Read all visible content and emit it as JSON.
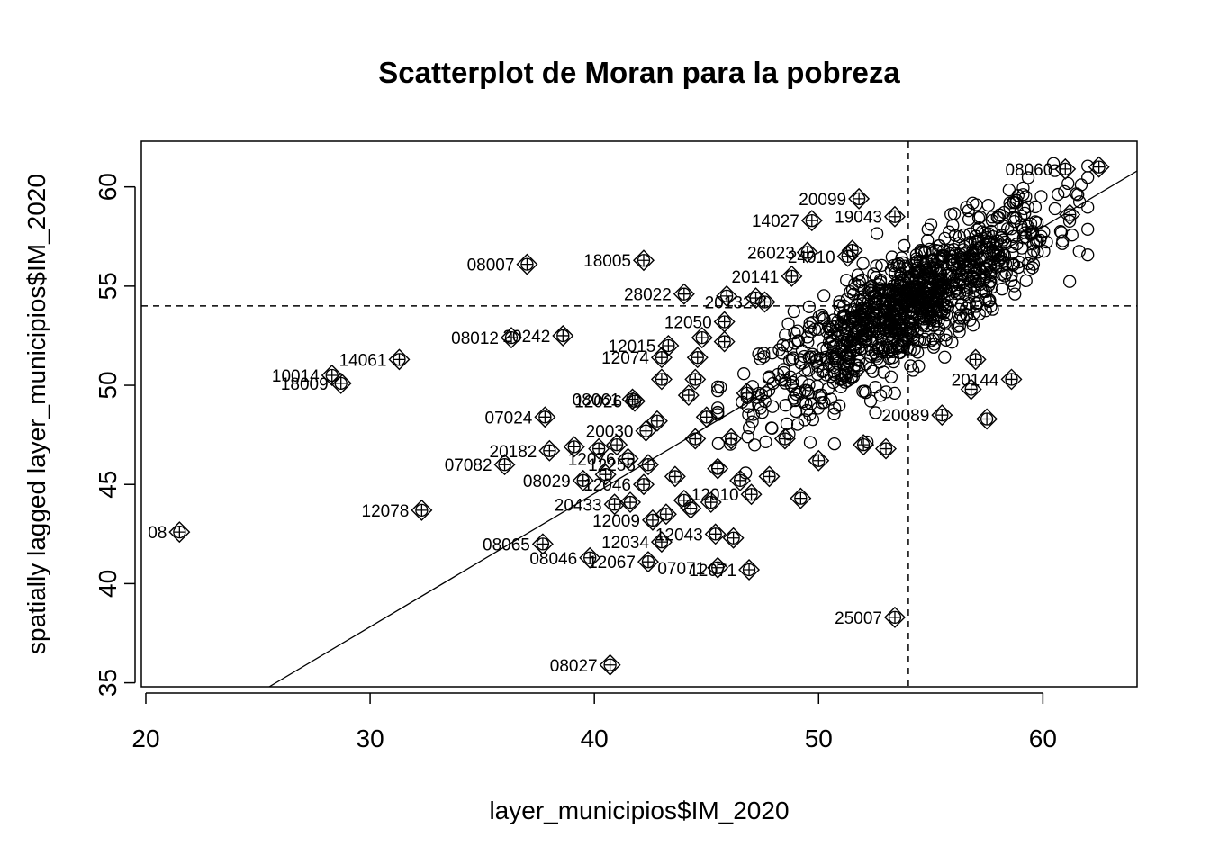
{
  "chart_data": {
    "type": "scatter",
    "title": "Scatterplot de Moran para la pobreza",
    "xlabel": "layer_municipios$IM_2020",
    "ylabel": "spatially lagged layer_municipios$IM_2020",
    "xlim": [
      19.8,
      64.2
    ],
    "ylim": [
      34.8,
      62.3
    ],
    "x_ticks": [
      20,
      30,
      40,
      50,
      60
    ],
    "y_ticks": [
      35,
      40,
      45,
      50,
      55,
      60
    ],
    "mean_x": 54.0,
    "mean_y": 54.0,
    "regression_line": {
      "x": [
        25.5,
        64.2
      ],
      "y": [
        34.8,
        60.8
      ]
    },
    "grid": false,
    "legend": "none",
    "cloud": {
      "center": [
        54.0,
        54.0
      ],
      "slope": 0.67,
      "n_points": 1100,
      "x_range": [
        45.5,
        62.0
      ],
      "note_hidden": true
    },
    "influential": [
      {
        "label": "08",
        "x": 21.5,
        "y": 42.6
      },
      {
        "label": "10014",
        "x": 28.3,
        "y": 50.5
      },
      {
        "label": "18009",
        "x": 28.7,
        "y": 50.1
      },
      {
        "label": "14061",
        "x": 31.3,
        "y": 51.3
      },
      {
        "label": "12078",
        "x": 32.3,
        "y": 43.7
      },
      {
        "label": "08007",
        "x": 37.0,
        "y": 56.1
      },
      {
        "label": "08012",
        "x": 36.3,
        "y": 52.4
      },
      {
        "label": "20242",
        "x": 38.6,
        "y": 52.5
      },
      {
        "label": "07024",
        "x": 37.8,
        "y": 48.4
      },
      {
        "label": "07082",
        "x": 36.0,
        "y": 46.0
      },
      {
        "label": "20182",
        "x": 38.0,
        "y": 46.7
      },
      {
        "label": "08029",
        "x": 39.5,
        "y": 45.2
      },
      {
        "label": "08065",
        "x": 37.7,
        "y": 42.0
      },
      {
        "label": "08046",
        "x": 39.8,
        "y": 41.3
      },
      {
        "label": "08027",
        "x": 40.7,
        "y": 35.9
      },
      {
        "label": "20433",
        "x": 40.9,
        "y": 44.0
      },
      {
        "label": "12067",
        "x": 42.4,
        "y": 41.1
      },
      {
        "label": "12034",
        "x": 43.0,
        "y": 42.1
      },
      {
        "label": "12009",
        "x": 42.6,
        "y": 43.2
      },
      {
        "label": "12046",
        "x": 42.2,
        "y": 45.0
      },
      {
        "label": "18005",
        "x": 42.2,
        "y": 56.3
      },
      {
        "label": "28022",
        "x": 44.0,
        "y": 54.6
      },
      {
        "label": "12050",
        "x": 45.8,
        "y": 53.2
      },
      {
        "label": "12074",
        "x": 43.0,
        "y": 51.4
      },
      {
        "label": "12015",
        "x": 43.3,
        "y": 52.0
      },
      {
        "label": "08061",
        "x": 41.7,
        "y": 49.3
      },
      {
        "label": "20099",
        "x": 51.8,
        "y": 59.4
      },
      {
        "label": "14027",
        "x": 49.7,
        "y": 58.3
      },
      {
        "label": "19043",
        "x": 53.4,
        "y": 58.5
      },
      {
        "label": "26023",
        "x": 49.5,
        "y": 56.7
      },
      {
        "label": "24010",
        "x": 51.3,
        "y": 56.5
      },
      {
        "label": "20141",
        "x": 48.8,
        "y": 55.5
      },
      {
        "label": "20132",
        "x": 47.6,
        "y": 54.2
      },
      {
        "label": "25007",
        "x": 53.4,
        "y": 38.3
      },
      {
        "label": "20089",
        "x": 55.5,
        "y": 48.5
      },
      {
        "label": "20144",
        "x": 58.6,
        "y": 50.3
      },
      {
        "label": "07071",
        "x": 45.5,
        "y": 40.8
      },
      {
        "label": "12071",
        "x": 46.9,
        "y": 40.7
      },
      {
        "label": "12043",
        "x": 45.4,
        "y": 42.5
      },
      {
        "label": "12010",
        "x": 47.0,
        "y": 44.5
      },
      {
        "label": "12258",
        "x": 42.4,
        "y": 46.0
      },
      {
        "label": "12076",
        "x": 41.5,
        "y": 46.3
      },
      {
        "label": "20030",
        "x": 42.3,
        "y": 47.7
      },
      {
        "label": "12026",
        "x": 41.8,
        "y": 49.2
      },
      {
        "label": "08060",
        "x": 61.0,
        "y": 60.9
      },
      {
        "label": "",
        "x": 62.5,
        "y": 61.0
      },
      {
        "label": "",
        "x": 61.2,
        "y": 58.6
      },
      {
        "label": "",
        "x": 57.5,
        "y": 48.3
      },
      {
        "label": "",
        "x": 56.8,
        "y": 49.8
      },
      {
        "label": "",
        "x": 57.0,
        "y": 51.3
      },
      {
        "label": "",
        "x": 53.0,
        "y": 46.8
      },
      {
        "label": "",
        "x": 50.0,
        "y": 46.2
      },
      {
        "label": "",
        "x": 49.2,
        "y": 44.3
      },
      {
        "label": "",
        "x": 46.2,
        "y": 42.3
      },
      {
        "label": "",
        "x": 45.5,
        "y": 45.8
      },
      {
        "label": "",
        "x": 44.0,
        "y": 44.2
      },
      {
        "label": "",
        "x": 43.6,
        "y": 45.4
      },
      {
        "label": "",
        "x": 44.5,
        "y": 47.3
      },
      {
        "label": "",
        "x": 45.0,
        "y": 48.4
      },
      {
        "label": "",
        "x": 44.2,
        "y": 49.5
      },
      {
        "label": "",
        "x": 44.6,
        "y": 51.4
      },
      {
        "label": "",
        "x": 45.8,
        "y": 52.2
      },
      {
        "label": "",
        "x": 44.5,
        "y": 50.3
      },
      {
        "label": "",
        "x": 46.1,
        "y": 47.3
      },
      {
        "label": "",
        "x": 46.8,
        "y": 49.6
      },
      {
        "label": "",
        "x": 47.8,
        "y": 45.4
      },
      {
        "label": "",
        "x": 48.5,
        "y": 47.3
      },
      {
        "label": "",
        "x": 42.8,
        "y": 48.2
      },
      {
        "label": "",
        "x": 43.0,
        "y": 50.3
      },
      {
        "label": "",
        "x": 41.0,
        "y": 47.0
      },
      {
        "label": "",
        "x": 40.2,
        "y": 46.8
      },
      {
        "label": "",
        "x": 39.1,
        "y": 46.9
      },
      {
        "label": "",
        "x": 40.5,
        "y": 45.5
      },
      {
        "label": "",
        "x": 43.2,
        "y": 43.5
      },
      {
        "label": "",
        "x": 44.3,
        "y": 43.8
      },
      {
        "label": "",
        "x": 41.6,
        "y": 44.1
      },
      {
        "label": "",
        "x": 45.2,
        "y": 44.1
      },
      {
        "label": "",
        "x": 46.5,
        "y": 45.2
      },
      {
        "label": "",
        "x": 52.0,
        "y": 47.0
      },
      {
        "label": "",
        "x": 51.5,
        "y": 56.8
      },
      {
        "label": "",
        "x": 47.2,
        "y": 54.4
      },
      {
        "label": "",
        "x": 45.9,
        "y": 54.5
      },
      {
        "label": "",
        "x": 44.8,
        "y": 52.4
      }
    ]
  }
}
